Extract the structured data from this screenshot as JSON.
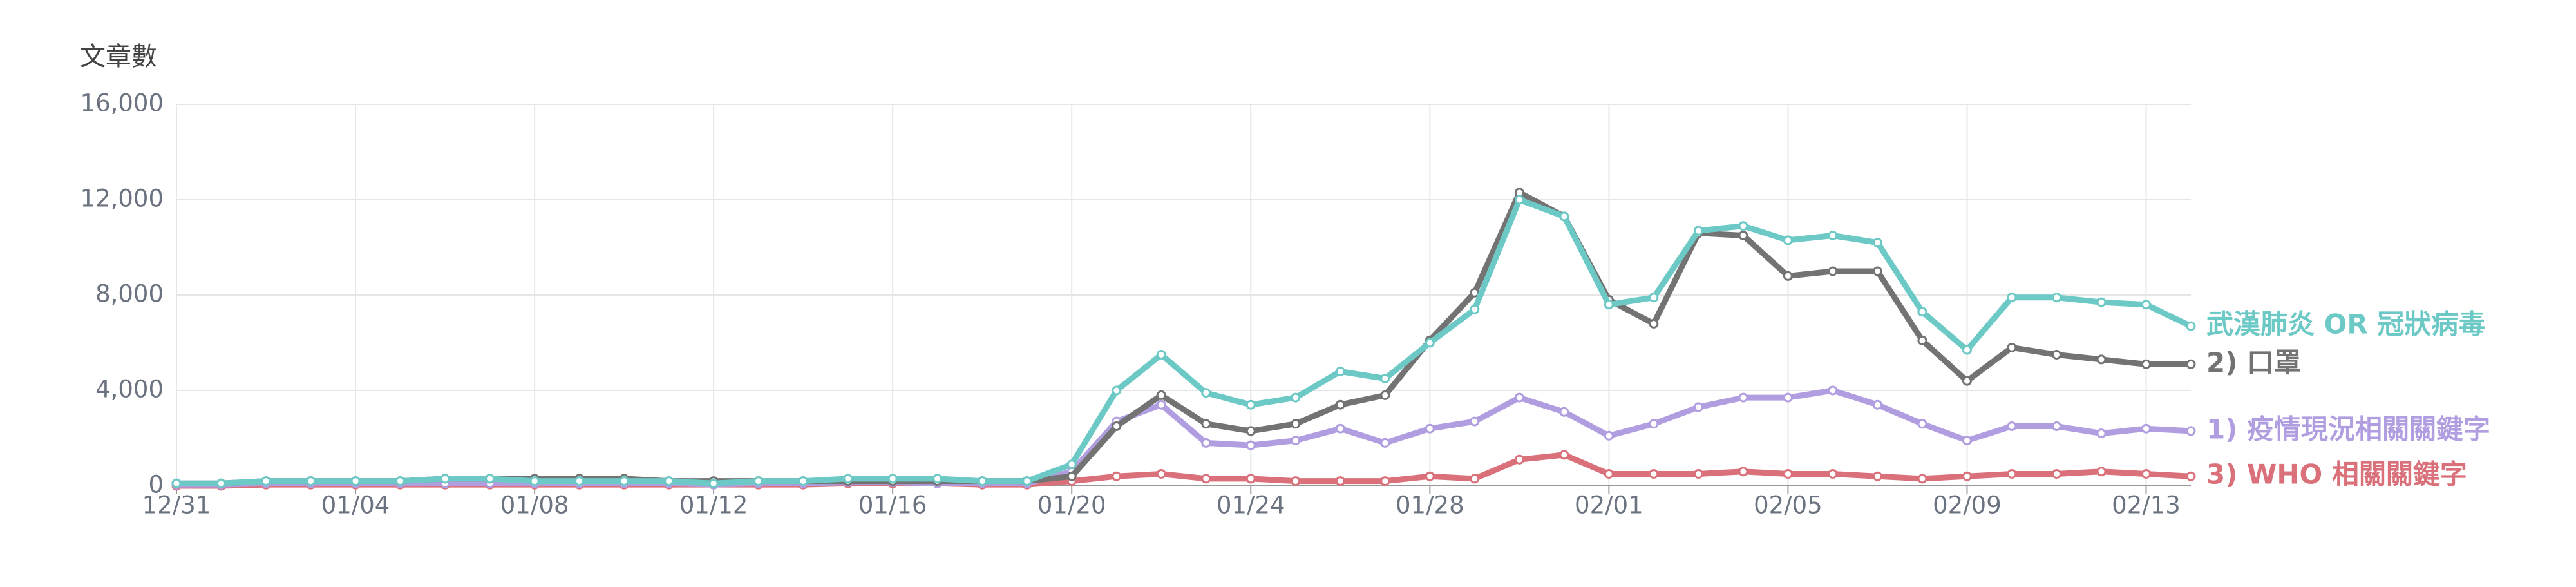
{
  "chart_data": {
    "type": "line",
    "y_label": "文章數",
    "categories": [
      "12/31",
      null,
      null,
      null,
      "01/04",
      null,
      null,
      null,
      "01/08",
      null,
      null,
      null,
      "01/12",
      null,
      null,
      null,
      "01/16",
      null,
      null,
      null,
      "01/20",
      null,
      null,
      null,
      "01/24",
      null,
      null,
      null,
      "01/28",
      null,
      null,
      null,
      "02/01",
      null,
      null,
      null,
      "02/05",
      null,
      null,
      null,
      "02/09",
      null,
      null,
      null,
      "02/13",
      null
    ],
    "ylim": [
      0,
      16000
    ],
    "yticks": [
      {
        "value": 0,
        "label": "0"
      },
      {
        "value": 4000,
        "label": "4,000"
      },
      {
        "value": 8000,
        "label": "8,000"
      },
      {
        "value": 12000,
        "label": "12,000"
      },
      {
        "value": 16000,
        "label": "16,000"
      }
    ],
    "grid": true,
    "series": [
      {
        "name": "武漢肺炎 OR 冠狀病毒",
        "color": "#6cc9c6",
        "values": [
          100,
          100,
          200,
          200,
          200,
          200,
          300,
          300,
          200,
          200,
          200,
          200,
          100,
          200,
          200,
          300,
          300,
          300,
          200,
          200,
          900,
          4000,
          5500,
          3900,
          3400,
          3700,
          4800,
          4500,
          6000,
          7400,
          12000,
          11300,
          7600,
          7900,
          10700,
          10900,
          10300,
          10500,
          10200,
          7300,
          5700,
          7900,
          7900,
          7700,
          7600,
          6700
        ]
      },
      {
        "name": "2) 口罩",
        "color": "#737373",
        "values": [
          100,
          100,
          200,
          200,
          200,
          200,
          300,
          300,
          300,
          300,
          300,
          200,
          200,
          200,
          200,
          200,
          200,
          200,
          200,
          200,
          400,
          2500,
          3800,
          2600,
          2300,
          2600,
          3400,
          3800,
          6100,
          8100,
          12300,
          11300,
          7800,
          6800,
          10600,
          10500,
          8800,
          9000,
          9000,
          6100,
          4400,
          5800,
          5500,
          5300,
          5100,
          5100
        ]
      },
      {
        "name": "1) 疫情現況相關關鍵字",
        "color": "#b09ee0",
        "values": [
          50,
          50,
          100,
          100,
          100,
          100,
          100,
          100,
          100,
          100,
          100,
          100,
          50,
          100,
          100,
          150,
          150,
          100,
          100,
          100,
          600,
          2700,
          3400,
          1800,
          1700,
          1900,
          2400,
          1800,
          2400,
          2700,
          3700,
          3100,
          2100,
          2600,
          3300,
          3700,
          3700,
          4000,
          3400,
          2600,
          1900,
          2500,
          2500,
          2200,
          2400,
          2300
        ]
      },
      {
        "name": "3) WHO 相關關鍵字",
        "color": "#d9707a",
        "values": [
          0,
          0,
          50,
          50,
          50,
          50,
          50,
          50,
          50,
          50,
          50,
          50,
          50,
          50,
          50,
          100,
          100,
          100,
          50,
          50,
          200,
          400,
          500,
          300,
          300,
          200,
          200,
          200,
          400,
          300,
          1100,
          1300,
          500,
          500,
          500,
          600,
          500,
          500,
          400,
          300,
          400,
          500,
          500,
          600,
          500,
          400
        ]
      }
    ]
  }
}
